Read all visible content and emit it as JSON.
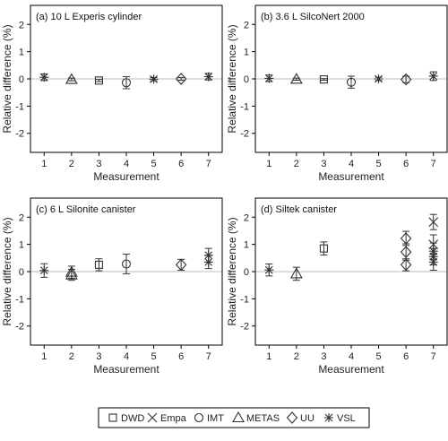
{
  "chart_data": [
    {
      "type": "scatter",
      "title": "(a) 10 L Experis cylinder",
      "xlabel": "Measurement",
      "ylabel": "Relative difference (%)",
      "x_ticks": [
        "1",
        "2",
        "3",
        "4",
        "5",
        "6",
        "7"
      ],
      "y_ticks": [
        "-2",
        "-1",
        "0",
        "1",
        "2"
      ],
      "ylim": [
        -2.7,
        2.7
      ],
      "xlim": [
        0.5,
        7.5
      ],
      "points": [
        {
          "lab": "VSL",
          "x": 1,
          "y": 0.06,
          "err": 0.12
        },
        {
          "lab": "METAS",
          "x": 2,
          "y": -0.02,
          "err": 0.05
        },
        {
          "lab": "DWD",
          "x": 3,
          "y": -0.06,
          "err": 0.04
        },
        {
          "lab": "IMT",
          "x": 4,
          "y": -0.14,
          "err": 0.22
        },
        {
          "lab": "VSL",
          "x": 5,
          "y": -0.01,
          "err": 0.06
        },
        {
          "lab": "UU",
          "x": 6,
          "y": 0.0,
          "err": 0.05
        },
        {
          "lab": "VSL",
          "x": 7,
          "y": 0.08,
          "err": 0.12
        }
      ]
    },
    {
      "type": "scatter",
      "title": "(b) 3.6 L SilcoNert 2000",
      "xlabel": "Measurement",
      "ylabel": "Relative difference (%)",
      "x_ticks": [
        "1",
        "2",
        "3",
        "4",
        "5",
        "6",
        "7"
      ],
      "y_ticks": [
        "-2",
        "-1",
        "0",
        "1",
        "2"
      ],
      "ylim": [
        -2.7,
        2.7
      ],
      "xlim": [
        0.5,
        7.5
      ],
      "points": [
        {
          "lab": "VSL",
          "x": 1,
          "y": 0.02,
          "err": 0.12
        },
        {
          "lab": "METAS",
          "x": 2,
          "y": -0.01,
          "err": 0.04
        },
        {
          "lab": "DWD",
          "x": 3,
          "y": -0.02,
          "err": 0.03
        },
        {
          "lab": "IMT",
          "x": 4,
          "y": -0.12,
          "err": 0.22
        },
        {
          "lab": "VSL",
          "x": 5,
          "y": 0.0,
          "err": 0.06
        },
        {
          "lab": "UU",
          "x": 6,
          "y": -0.02,
          "err": 0.12
        },
        {
          "lab": "VSL",
          "x": 7,
          "y": 0.1,
          "err": 0.16
        }
      ]
    },
    {
      "type": "scatter",
      "title": "(c) 6 L Silonite canister",
      "xlabel": "Measurement",
      "ylabel": "Relative difference (%)",
      "x_ticks": [
        "1",
        "2",
        "3",
        "4",
        "5",
        "6",
        "7"
      ],
      "y_ticks": [
        "-2",
        "-1",
        "0",
        "1",
        "2"
      ],
      "ylim": [
        -2.7,
        2.7
      ],
      "xlim": [
        0.5,
        7.5
      ],
      "points": [
        {
          "lab": "VSL",
          "x": 1,
          "y": 0.04,
          "err": 0.25
        },
        {
          "lab": "METAS",
          "x": 2,
          "y": -0.02,
          "err": 0.22
        },
        {
          "lab": "METAS",
          "x": 2,
          "y": -0.12,
          "err": 0.2
        },
        {
          "lab": "DWD",
          "x": 3,
          "y": 0.25,
          "err": 0.22
        },
        {
          "lab": "IMT",
          "x": 4,
          "y": 0.28,
          "err": 0.36
        },
        {
          "lab": "UU",
          "x": 6,
          "y": 0.25,
          "err": 0.2
        },
        {
          "lab": "VSL",
          "x": 7,
          "y": 0.6,
          "err": 0.25
        },
        {
          "lab": "VSL",
          "x": 7,
          "y": 0.35,
          "err": 0.24
        }
      ]
    },
    {
      "type": "scatter",
      "title": "(d) Siltek canister",
      "xlabel": "Measurement",
      "ylabel": "Relative difference (%)",
      "x_ticks": [
        "1",
        "2",
        "3",
        "4",
        "5",
        "6",
        "7"
      ],
      "y_ticks": [
        "-2",
        "-1",
        "0",
        "1",
        "2"
      ],
      "ylim": [
        -2.7,
        2.7
      ],
      "xlim": [
        0.5,
        7.5
      ],
      "points": [
        {
          "lab": "VSL",
          "x": 1,
          "y": 0.06,
          "err": 0.22
        },
        {
          "lab": "METAS",
          "x": 2,
          "y": -0.08,
          "err": 0.24
        },
        {
          "lab": "DWD",
          "x": 3,
          "y": 0.85,
          "err": 0.24
        },
        {
          "lab": "UU",
          "x": 6,
          "y": 1.22,
          "err": 0.26
        },
        {
          "lab": "UU",
          "x": 6,
          "y": 0.72,
          "err": 0.3
        },
        {
          "lab": "UU",
          "x": 6,
          "y": 0.25,
          "err": 0.22
        },
        {
          "lab": "Empa",
          "x": 7,
          "y": 1.82,
          "err": 0.28
        },
        {
          "lab": "Empa",
          "x": 7,
          "y": 1.0,
          "err": 0.35
        },
        {
          "lab": "VSL",
          "x": 7,
          "y": 0.75,
          "err": 0.3
        },
        {
          "lab": "VSL",
          "x": 7,
          "y": 0.55,
          "err": 0.3
        },
        {
          "lab": "VSL",
          "x": 7,
          "y": 0.35,
          "err": 0.3
        }
      ]
    }
  ],
  "legend": {
    "placement": "bottom",
    "entries": [
      {
        "lab": "DWD",
        "label": "DWD"
      },
      {
        "lab": "Empa",
        "label": "Empa"
      },
      {
        "lab": "IMT",
        "label": "IMT"
      },
      {
        "lab": "METAS",
        "label": "METAS"
      },
      {
        "lab": "UU",
        "label": "UU"
      },
      {
        "lab": "VSL",
        "label": "VSL"
      }
    ]
  },
  "colors": {
    "marker": "#333333",
    "zero_line": "#bbbbbb",
    "frame": "#000000"
  }
}
